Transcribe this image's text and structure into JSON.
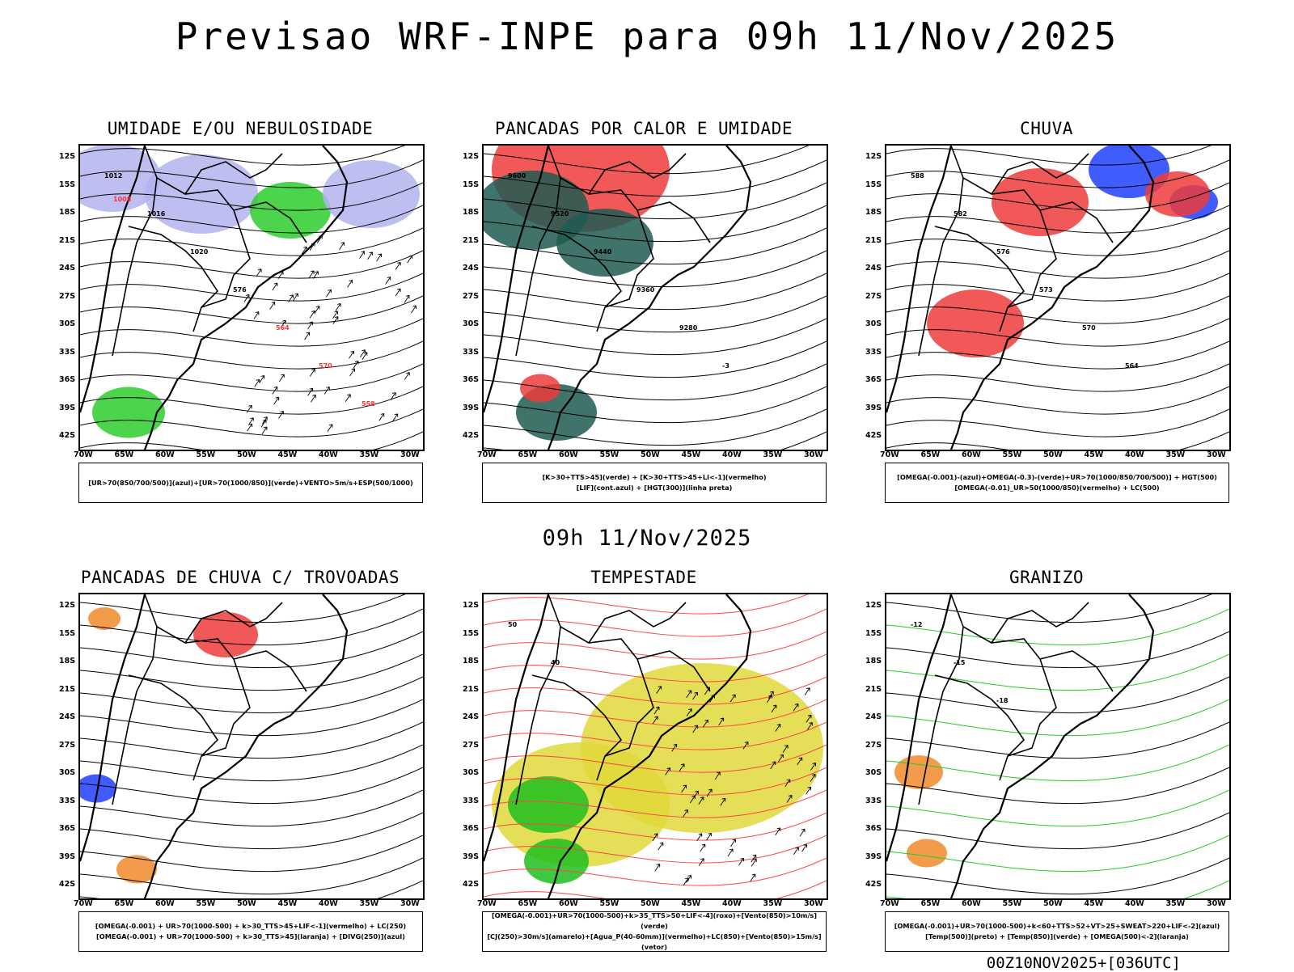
{
  "header": {
    "title": "Previsao WRF-INPE  para 09h 11/Nov/2025"
  },
  "subheader": {
    "label": "09h 11/Nov/2025"
  },
  "footer": {
    "run_label": "00Z10NOV2025+[036UTC]"
  },
  "chart_data": [
    {
      "type": "map",
      "title": "UMIDADE E/OU NEBULOSIDADE",
      "legend_lines": [
        "[UR>70(850/700/500)](azul)+[UR>70(1000/850)](verde)+VENTO>5m/s+ESP(500/1000)"
      ],
      "contour_labels": [
        "1012",
        "1016",
        "1020",
        "576",
        "564",
        "570",
        "558",
        "1008"
      ],
      "colors": {
        "fill1": "#b3b3ee",
        "fill2": "#2ecc2e",
        "line": "#ff3333"
      }
    },
    {
      "type": "map",
      "title": "PANCADAS POR CALOR E UMIDADE",
      "legend_lines": [
        "[K>30+TTS>45](verde) + [K>30+TTS>45+LI<-1](vermelho)",
        "[LIF](cont.azul) + [HGT(300)](linha preta)"
      ],
      "contour_labels": [
        "9600",
        "9520",
        "9440",
        "9360",
        "9280",
        "-3"
      ],
      "colors": {
        "fill1": "#1e5a52",
        "fill2": "#ef3b3b",
        "line": "#2233dd"
      }
    },
    {
      "type": "map",
      "title": "CHUVA",
      "legend_lines": [
        "[OMEGA(-0.001)-(azul)+OMEGA(-0.3)-(verde)+UR>70(1000/850/700/500)] + HGT(500)",
        "[OMEGA(-0.01)_UR>50(1000/850)(vermelho) + LC(500)"
      ],
      "contour_labels": [
        "588",
        "582",
        "576",
        "573",
        "570",
        "564"
      ],
      "colors": {
        "fill1": "#ef3b3b",
        "fill2": "#1f3fff",
        "line": "#000000"
      }
    },
    {
      "type": "map",
      "title": "PANCADAS DE CHUVA C/ TROVOADAS",
      "legend_lines": [
        "[OMEGA(-0.001) + UR>70(1000-500) + k>30_TTS>45+LIF<-1](vermelho) + LC(250)",
        "[OMEGA(-0.001) + UR>70(1000-500) + k>30_TTS>45](laranja) + [DIVG(250)](azul)"
      ],
      "contour_labels": [],
      "colors": {
        "fill1": "#ef3b3b",
        "fill2": "#f08a2c",
        "line": "#1f3fff"
      }
    },
    {
      "type": "map",
      "title": "TEMPESTADE",
      "legend_lines": [
        "[OMEGA(-0.001)+UR>70(1000-500)+k>35_TTS>50+LIF<-4](roxo)+[Vento(850)>10m/s](verde)",
        "[CJ(250)>30m/s](amarelo)+[Agua_P(40-60mm)](vermelho)+LC(850)+[Vento(850)>15m/s](vetor)"
      ],
      "contour_labels": [
        "50",
        "40"
      ],
      "colors": {
        "fill1": "#e0d83a",
        "fill2": "#1fbf1f",
        "line": "#ff4444"
      }
    },
    {
      "type": "map",
      "title": "GRANIZO",
      "legend_lines": [
        "[OMEGA(-0.001)+UR>70(1000-500)+k<60+TTS>52+VT>25+SWEAT>220+LIF<-2](azul)",
        "[Temp(500)](preto) + [Temp(850)](verde) + [OMEGA(500)<-2](laranja)"
      ],
      "contour_labels": [
        "-12",
        "-15",
        "-18"
      ],
      "colors": {
        "fill1": "#ffffff",
        "fill2": "#f08a2c",
        "line": "#22cc22"
      }
    }
  ],
  "axes": {
    "lat_ticks": [
      "12S",
      "15S",
      "18S",
      "21S",
      "24S",
      "27S",
      "30S",
      "33S",
      "36S",
      "39S",
      "42S"
    ],
    "lon_ticks": [
      "70W",
      "65W",
      "60W",
      "55W",
      "50W",
      "45W",
      "40W",
      "35W",
      "30W"
    ]
  }
}
